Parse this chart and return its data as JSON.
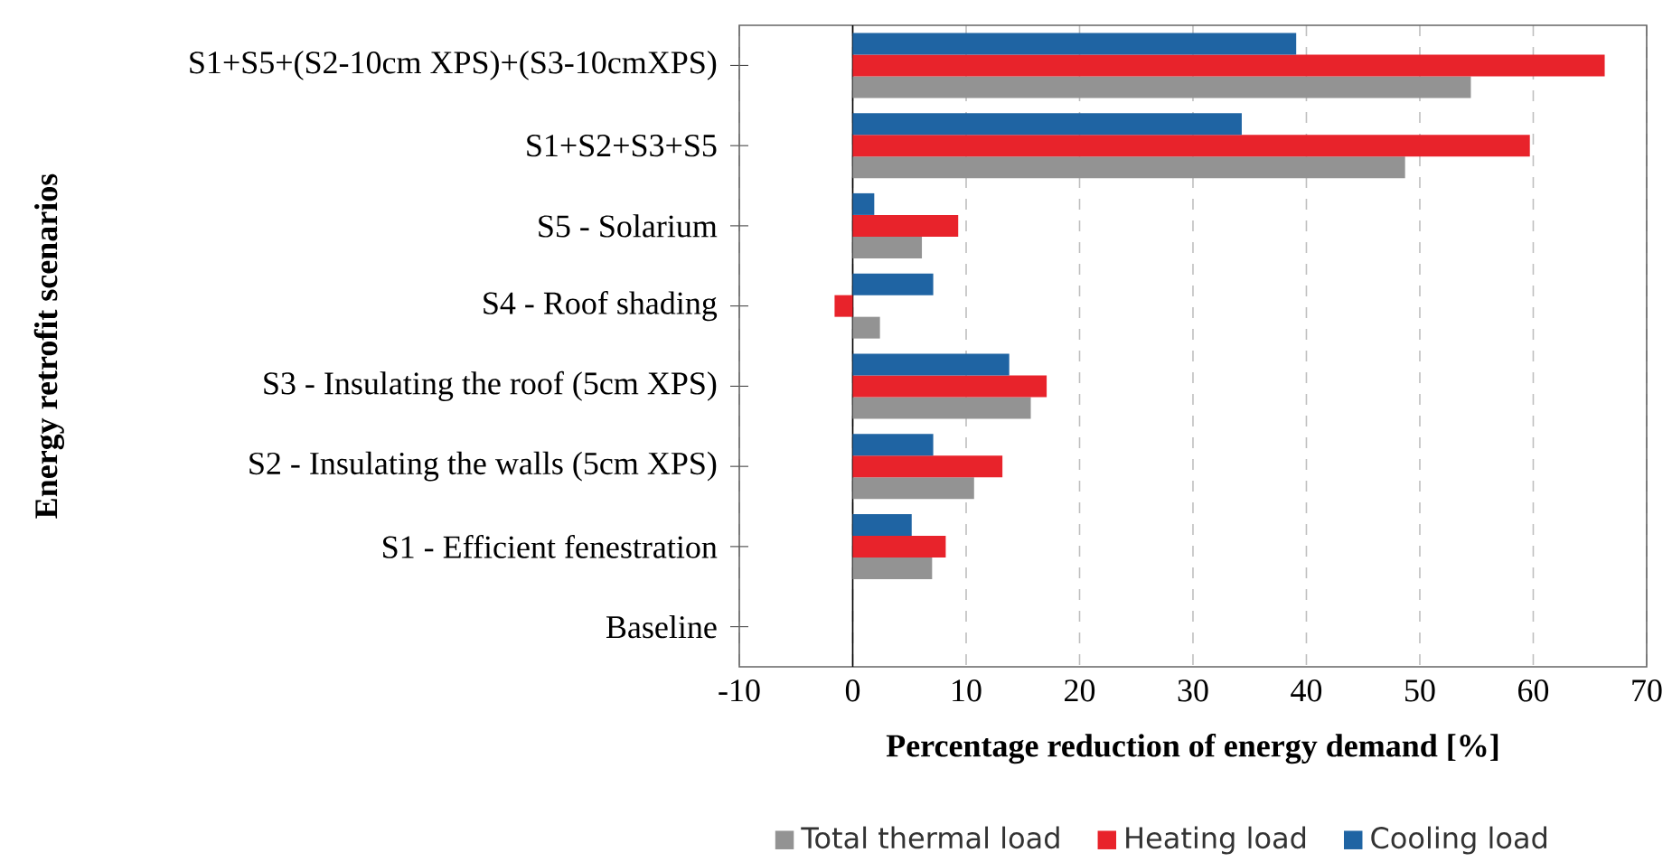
{
  "chart_data": {
    "type": "bar",
    "orientation": "horizontal",
    "xlabel": "Percentage reduction of energy demand [%]",
    "ylabel": "Energy retrofit scenarios",
    "categories": [
      "S1+S5+(S2-10cm XPS)+(S3-10cmXPS)",
      "S1+S2+S3+S5",
      "S5 - Solarium",
      "S4 - Roof shading",
      "S3 - Insulating the roof (5cm XPS)",
      "S2 - Insulating the walls (5cm XPS)",
      "S1 - Efficient fenestration",
      "Baseline"
    ],
    "series": [
      {
        "name": "Total thermal load",
        "color": "#939393",
        "values": [
          54.5,
          48.7,
          6.1,
          2.4,
          15.7,
          10.7,
          7.0,
          0
        ]
      },
      {
        "name": "Heating load",
        "color": "#e8232b",
        "values": [
          66.3,
          59.7,
          9.3,
          -1.6,
          17.1,
          13.2,
          8.2,
          0
        ]
      },
      {
        "name": "Cooling load",
        "color": "#1f64a3",
        "values": [
          39.1,
          34.3,
          1.9,
          7.1,
          13.8,
          7.1,
          5.2,
          0
        ]
      }
    ],
    "xlim": [
      -10,
      70
    ],
    "xticks": [
      -10,
      0,
      10,
      20,
      30,
      40,
      50,
      60,
      70
    ],
    "grid": "x",
    "legend": "bottom"
  }
}
